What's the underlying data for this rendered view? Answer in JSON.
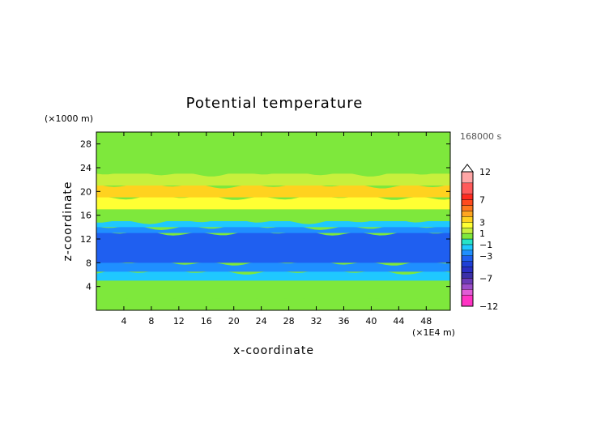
{
  "chart_data": {
    "type": "heatmap",
    "title": "Potential temperature",
    "xlabel": "x-coordinate",
    "ylabel": "z-coordinate",
    "x_unit_label": "(×1E4 m)",
    "y_unit_label": "(×1000 m)",
    "time_label": "168000 s",
    "xlim": [
      0,
      51.5
    ],
    "ylim": [
      0,
      30
    ],
    "x_ticks": [
      "4",
      "8",
      "12",
      "16",
      "20",
      "24",
      "28",
      "32",
      "36",
      "40",
      "44",
      "48"
    ],
    "y_ticks": [
      "4",
      "8",
      "12",
      "16",
      "20",
      "24",
      "28"
    ],
    "colorbar": {
      "labels": [
        "12",
        "7",
        "3",
        "1",
        "−1",
        "−3",
        "−7",
        "−12"
      ],
      "levels": [
        -12,
        -10,
        -9,
        -8,
        -7,
        -6,
        -5,
        -4,
        -3,
        -2,
        -1,
        0,
        1,
        2,
        3,
        4,
        5,
        6,
        7,
        8,
        10,
        12
      ],
      "colors": [
        "#ff33c4",
        "#e05cd6",
        "#9b4dc9",
        "#6b3bb7",
        "#3b2fa8",
        "#2a2ec4",
        "#1f3fd6",
        "#1f5ff0",
        "#1f8fff",
        "#1fc8ff",
        "#26e3c8",
        "#7ee83c",
        "#c8f03c",
        "#ffff33",
        "#ffd21f",
        "#ffa51f",
        "#ff781f",
        "#ff4b1f",
        "#ff2a1f",
        "#ff5a5a",
        "#ffa6a6"
      ]
    },
    "bands": [
      {
        "z": [
          0,
          2
        ],
        "value": 0.5
      },
      {
        "z": [
          2,
          5
        ],
        "value": 0.2
      },
      {
        "z": [
          5,
          6.5
        ],
        "value": -1.2
      },
      {
        "z": [
          6.5,
          8
        ],
        "value": -2.2
      },
      {
        "z": [
          8,
          13
        ],
        "value": -3.5
      },
      {
        "z": [
          13,
          14
        ],
        "value": -2.2
      },
      {
        "z": [
          14,
          15
        ],
        "value": -1.2
      },
      {
        "z": [
          15,
          17
        ],
        "value": 0.8
      },
      {
        "z": [
          17,
          19
        ],
        "value": 2.2
      },
      {
        "z": [
          19,
          21
        ],
        "value": 3.2
      },
      {
        "z": [
          21,
          23
        ],
        "value": 1.5
      },
      {
        "z": [
          23,
          30
        ],
        "value": 0.4
      }
    ]
  }
}
